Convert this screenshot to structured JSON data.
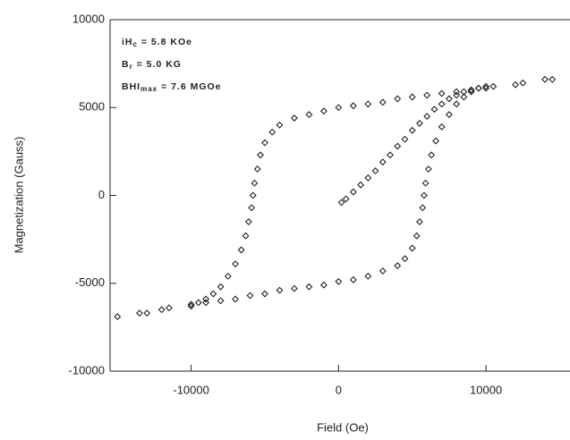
{
  "chart_data": {
    "type": "scatter",
    "x_label": "Field (Oe)",
    "y_label": "Magnetization (Gauss)",
    "annotations": [
      {
        "main": "iH",
        "sub": "c",
        "rest": " =  5.8 KOe"
      },
      {
        "main": "B",
        "sub": "r",
        "rest": "  =  5.0 KG"
      },
      {
        "main": "BHI",
        "sub": "max",
        "rest": " = 7.6 MGOe"
      }
    ],
    "marker_color": "#111111",
    "xlim": [
      -15500,
      15700
    ],
    "ylim": [
      -10000,
      10000
    ],
    "xticks": [
      -10000,
      0,
      10000
    ],
    "yticks": [
      -10000,
      -5000,
      0,
      5000,
      10000
    ],
    "x": [
      200,
      500,
      1000,
      1500,
      2000,
      2500,
      3000,
      3500,
      4000,
      4500,
      5000,
      5500,
      6000,
      6500,
      7000,
      7500,
      8000,
      8500,
      9000,
      9500,
      10000,
      9000,
      8000,
      7000,
      6000,
      5000,
      4000,
      3000,
      2000,
      1000,
      0,
      -1000,
      -2000,
      -3000,
      -4000,
      -4500,
      -5000,
      -5300,
      -5500,
      -5700,
      -5800,
      -5900,
      -6100,
      -6300,
      -6600,
      -7000,
      -7500,
      -8000,
      -8500,
      -9000,
      -9500,
      -10000,
      -10000,
      -9000,
      -8000,
      -7000,
      -6000,
      -5000,
      -4000,
      -3000,
      -2000,
      -1000,
      0,
      1000,
      2000,
      3000,
      4000,
      4500,
      5000,
      5300,
      5500,
      5700,
      5800,
      5900,
      6100,
      6300,
      6600,
      7000,
      7500,
      8000,
      8500,
      9000,
      9500,
      10000,
      -15000,
      -13500,
      -13000,
      -12000,
      -11500,
      10500,
      12000,
      12500,
      14000,
      14500
    ],
    "values": [
      -400,
      -200,
      200,
      600,
      1000,
      1400,
      1900,
      2300,
      2800,
      3200,
      3700,
      4100,
      4500,
      4900,
      5200,
      5500,
      5700,
      5900,
      6000,
      6100,
      6100,
      6000,
      5900,
      5800,
      5700,
      5600,
      5500,
      5300,
      5200,
      5100,
      5000,
      4800,
      4600,
      4400,
      4000,
      3600,
      3000,
      2300,
      1500,
      700,
      0,
      -700,
      -1500,
      -2300,
      -3100,
      -3900,
      -4600,
      -5200,
      -5600,
      -5900,
      -6100,
      -6300,
      -6200,
      -6100,
      -6000,
      -5900,
      -5700,
      -5600,
      -5400,
      -5300,
      -5200,
      -5100,
      -4900,
      -4800,
      -4600,
      -4300,
      -4000,
      -3600,
      -3000,
      -2300,
      -1500,
      -700,
      0,
      700,
      1500,
      2300,
      3100,
      3900,
      4600,
      5200,
      5600,
      5900,
      6100,
      6200,
      -6900,
      -6700,
      -6700,
      -6500,
      -6400,
      6200,
      6300,
      6400,
      6600,
      6600
    ]
  }
}
